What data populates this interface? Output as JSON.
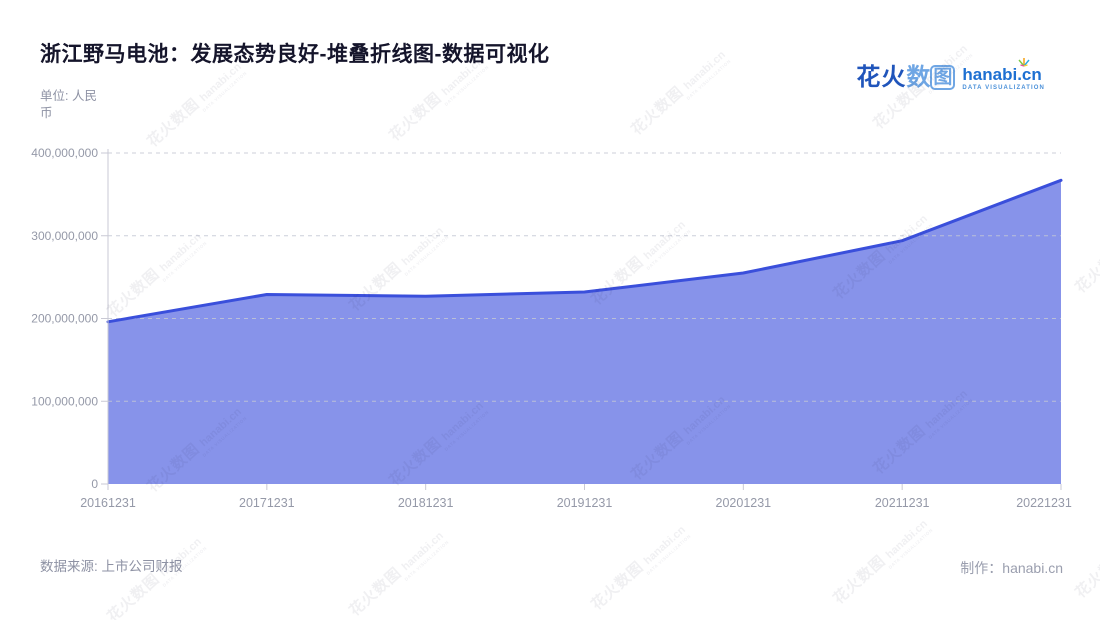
{
  "page": {
    "title": "浙江野马电池：发展态势良好-堆叠折线图-数据可视化",
    "unit_label": "单位: 人民币",
    "source_label": "数据来源: 上市公司财报",
    "made_by": "制作：hanabi.cn"
  },
  "logo": {
    "zh_bold": "花火",
    "zh_light": "数",
    "zh_boxed": "图",
    "domain": "hanabi.cn",
    "tagline": "DATA VISUALIZATION"
  },
  "watermark": {
    "text_zh": "花火数图",
    "text_domain": "hanabi.cn",
    "tagline": "DATA VISUALIZATION"
  },
  "chart_data": {
    "type": "area",
    "title": "浙江野马电池：发展态势良好-堆叠折线图-数据可视化",
    "x": [
      "20161231",
      "20171231",
      "20181231",
      "20191231",
      "20201231",
      "20211231",
      "20221231"
    ],
    "values": [
      196000000,
      229000000,
      227000000,
      232000000,
      255000000,
      294000000,
      367000000
    ],
    "ylim": [
      0,
      400000000
    ],
    "y_ticks": [
      {
        "label": "0",
        "value": 0
      },
      {
        "label": "100,000,000",
        "value": 100000000
      },
      {
        "label": "200,000,000",
        "value": 200000000
      },
      {
        "label": "300,000,000",
        "value": 300000000
      },
      {
        "label": "400,000,000",
        "value": 400000000
      }
    ],
    "grid": "dashed-horizontal",
    "legend": "none",
    "colors": {
      "area_fill": "#8793ea",
      "line": "#3a4fdb",
      "axis": "#c9c9d4",
      "tick_label": "#9599a8",
      "gridline": "#c4c7d4"
    }
  }
}
